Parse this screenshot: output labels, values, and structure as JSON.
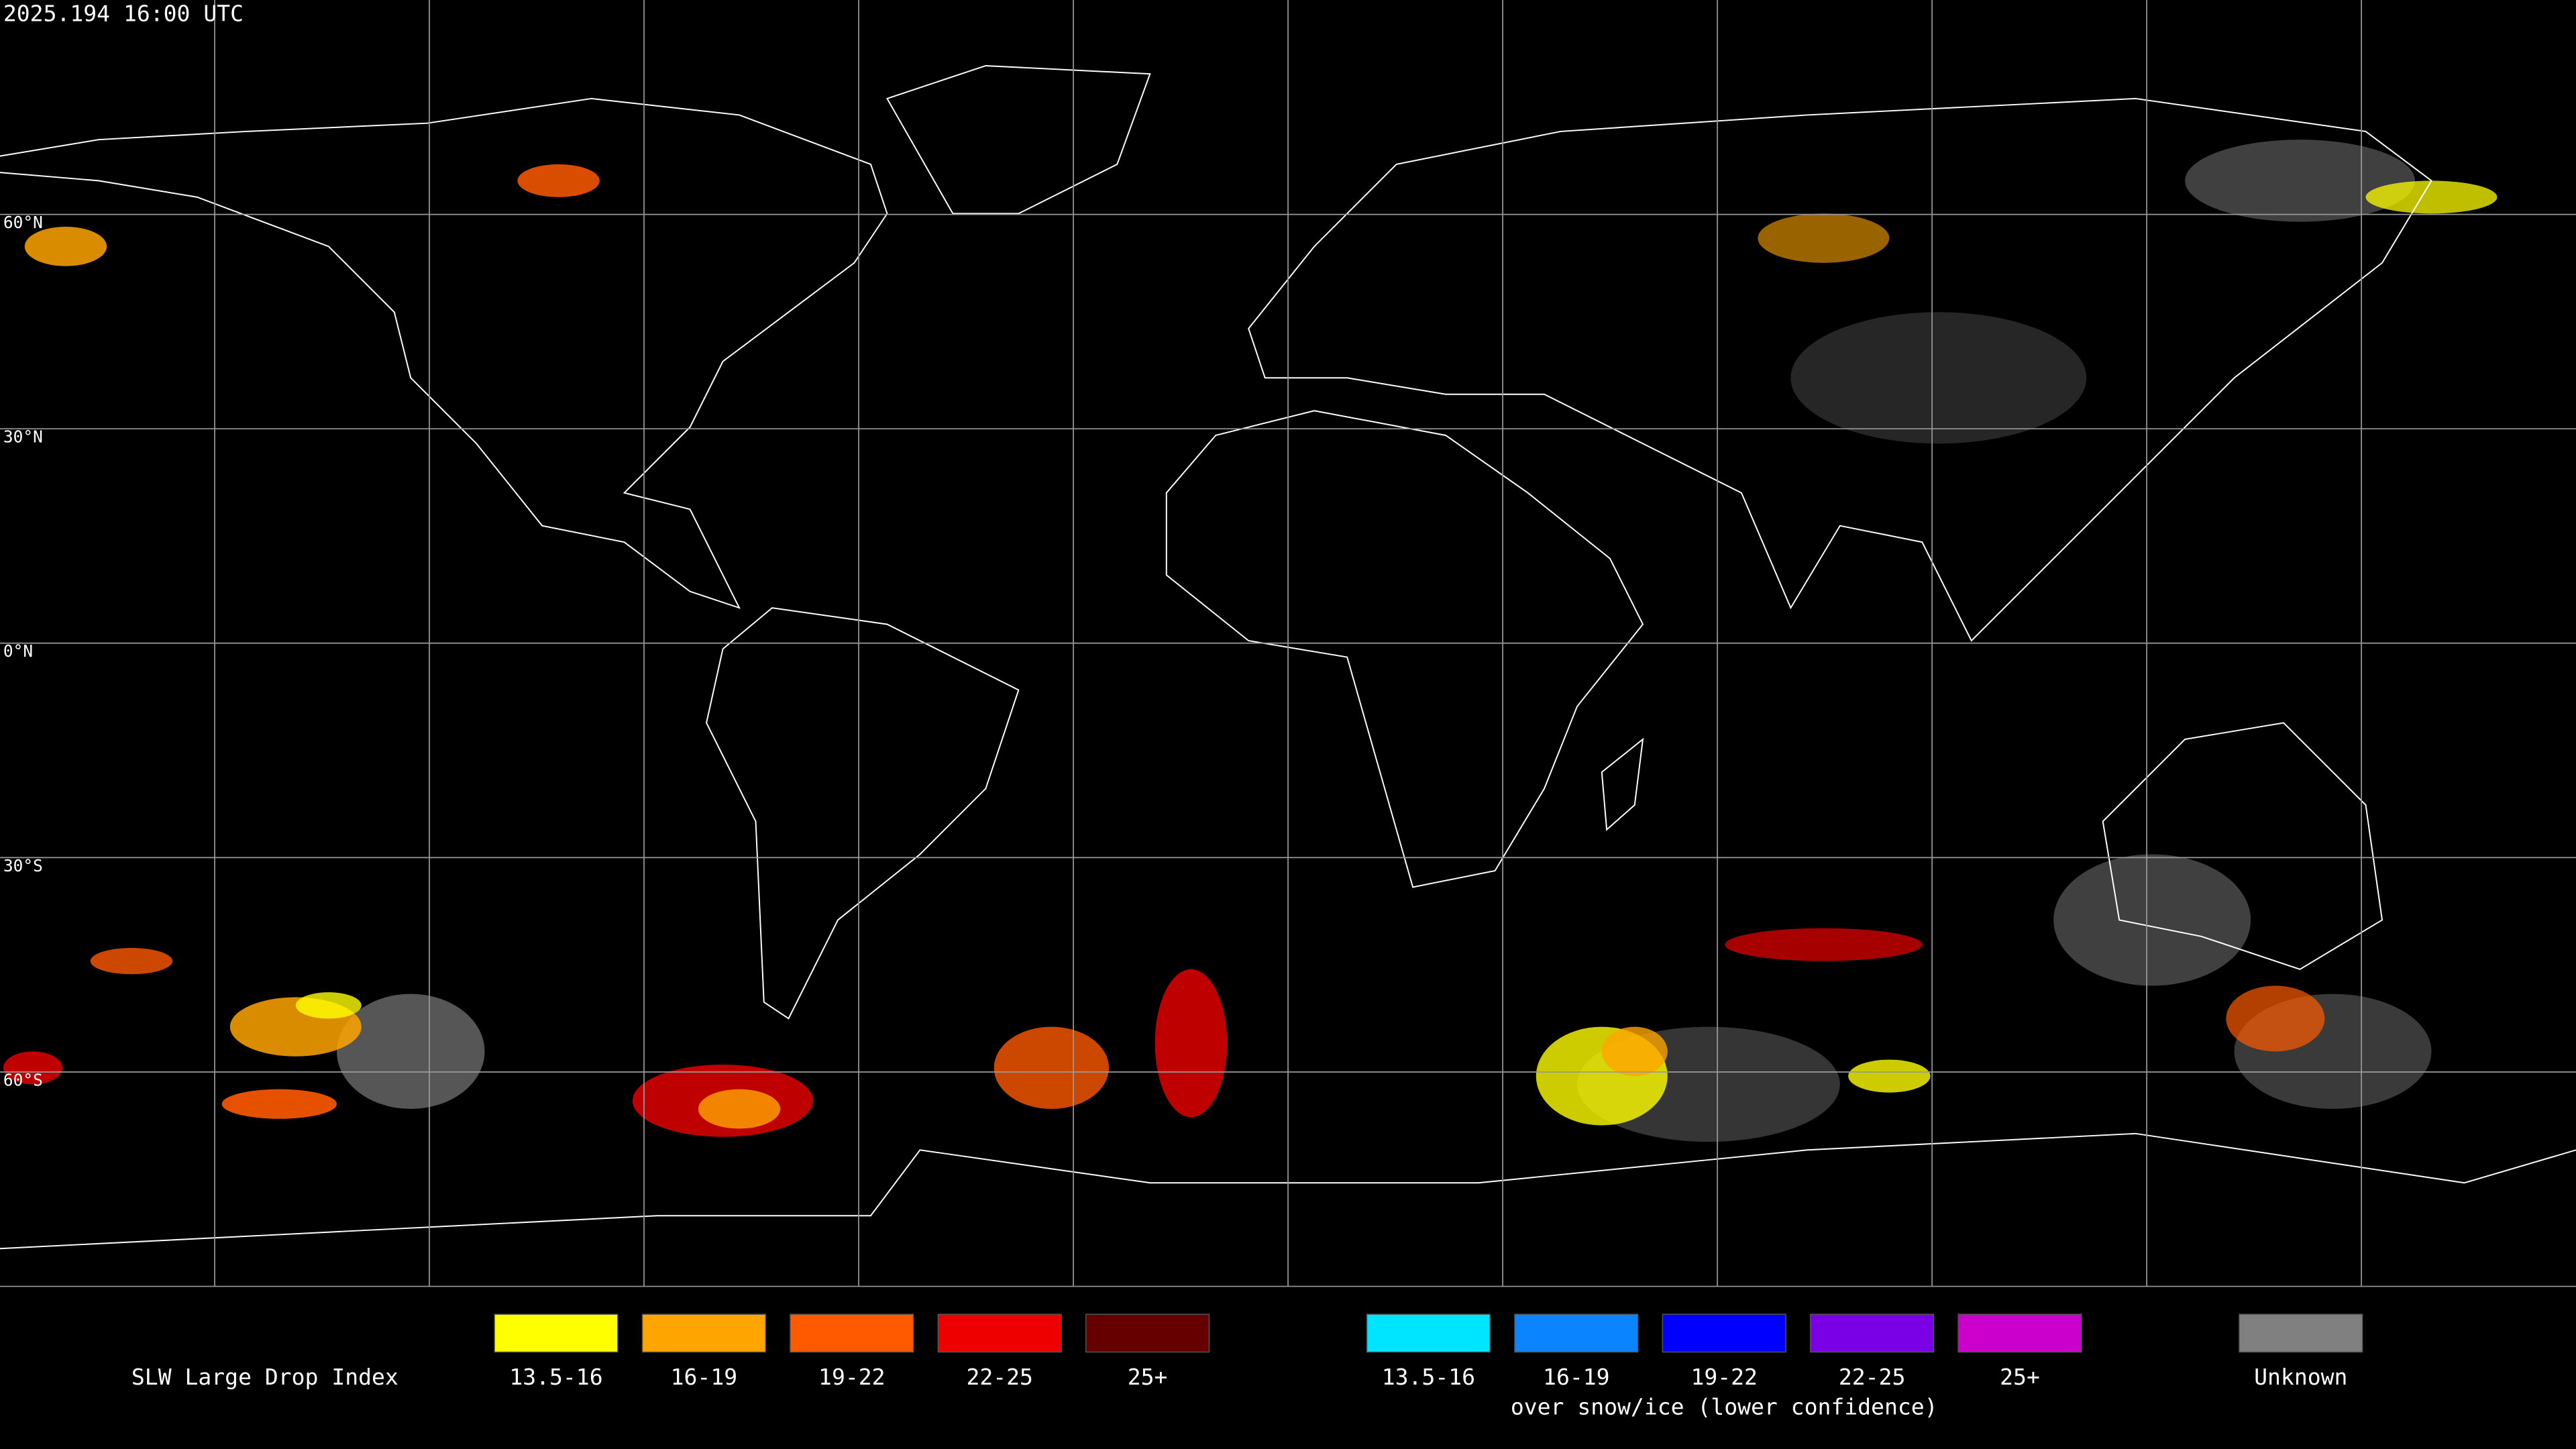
{
  "header": {
    "timestamp": "2025.194 16:00 UTC"
  },
  "map": {
    "latitude_labels": [
      "60°N",
      "30°N",
      "0°N",
      "30°S",
      "60°S"
    ]
  },
  "legend": {
    "title": "SLW Large Drop Index",
    "groups": [
      {
        "items": [
          {
            "label": "13.5-16",
            "color": "#ffff00"
          },
          {
            "label": "16-19",
            "color": "#ffa500"
          },
          {
            "label": "19-22",
            "color": "#ff5a00"
          },
          {
            "label": "22-25",
            "color": "#ee0000"
          },
          {
            "label": "25+",
            "color": "#660000"
          }
        ]
      },
      {
        "items": [
          {
            "label": "13.5-16",
            "color": "#00e5ff"
          },
          {
            "label": "16-19",
            "color": "#0a84ff"
          },
          {
            "label": "19-22",
            "color": "#0000ff"
          },
          {
            "label": "22-25",
            "color": "#7a00e6"
          },
          {
            "label": "25+",
            "color": "#cc00cc"
          }
        ],
        "caption": "over snow/ice (lower confidence)"
      },
      {
        "items": [
          {
            "label": "Unknown",
            "color": "#808080"
          }
        ]
      }
    ]
  }
}
